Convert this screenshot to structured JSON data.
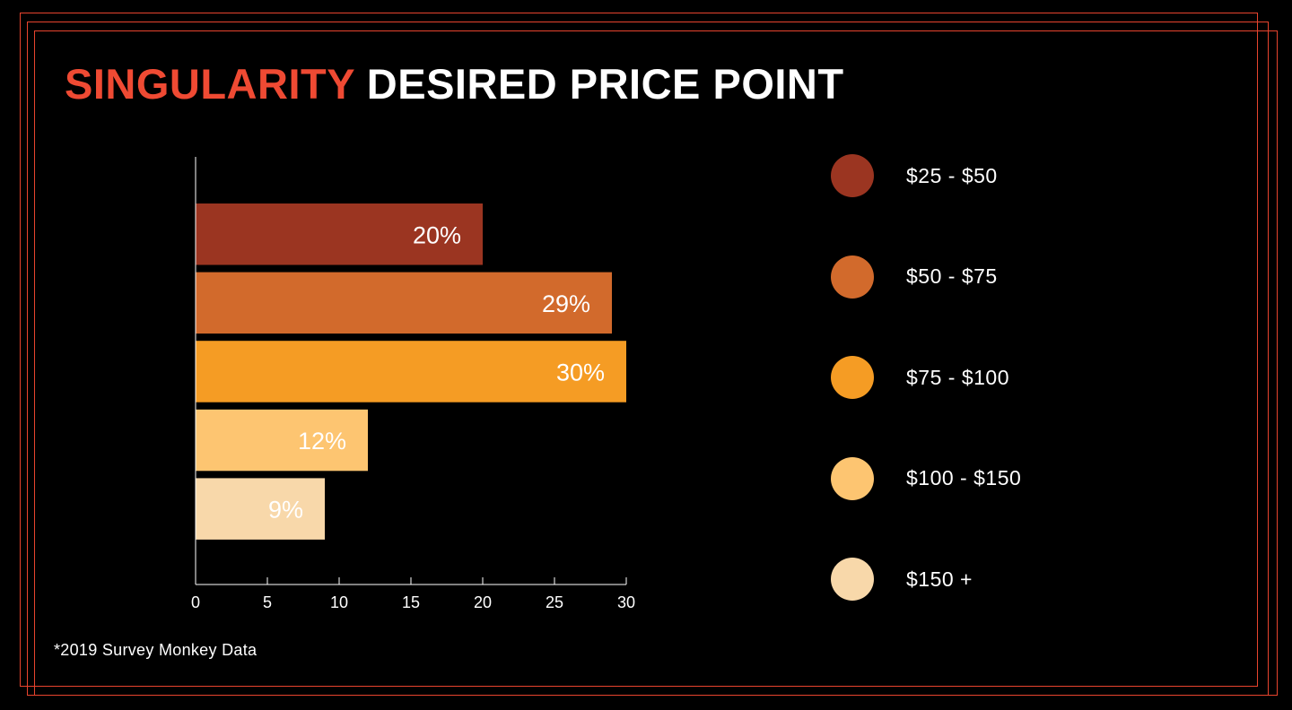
{
  "title": {
    "part1": "SINGULARITY",
    "part2": "DESIRED PRICE POINT"
  },
  "colors": {
    "frame": "#e8442e",
    "accent": "#ef4a33",
    "background": "#000000",
    "axis": "#ffffff"
  },
  "chart_data": {
    "type": "bar",
    "orientation": "horizontal",
    "title": "SINGULARITY DESIRED PRICE POINT",
    "categories": [
      "$25 - $50",
      "$50 - $75",
      "$75 - $100",
      "$100 - $150",
      "$150 +"
    ],
    "values": [
      20,
      29,
      30,
      12,
      9
    ],
    "data_labels": [
      "20%",
      "29%",
      "30%",
      "12%",
      "9%"
    ],
    "colors": [
      "#9b3521",
      "#d26a2c",
      "#f59c24",
      "#fdc571",
      "#f8d8aa"
    ],
    "xlim": [
      0,
      30
    ],
    "xticks": [
      0,
      5,
      10,
      15,
      20,
      25,
      30
    ],
    "xlabel": "",
    "ylabel": "",
    "grid": false,
    "legend_position": "right"
  },
  "footnote": "*2019 Survey Monkey Data"
}
